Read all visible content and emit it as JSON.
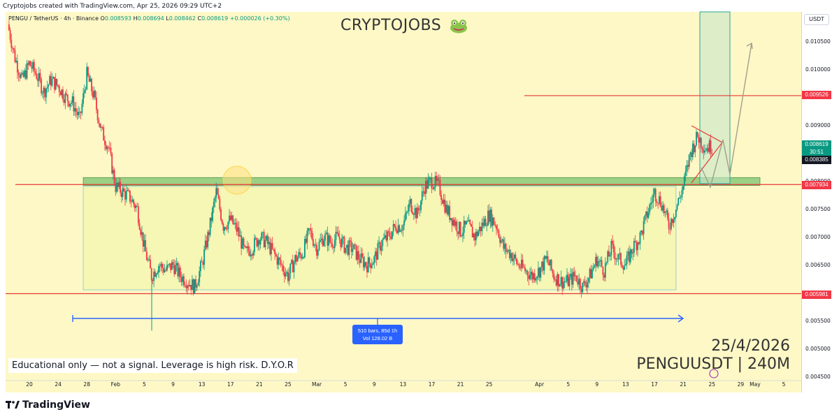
{
  "header": {
    "credit": "Cryptojobs created with TradingView.com, Apr 25, 2026 09:29 UTC+2"
  },
  "legend": {
    "symbol": "PENGU / TetherUS · 4h · Binance",
    "o_label": "O",
    "o": "0.008593",
    "h_label": "H",
    "h": "0.008694",
    "l_label": "L",
    "l": "0.008462",
    "c_label": "C",
    "c": "0.008619",
    "change": "+0.000026 (+0.30%)"
  },
  "brand": {
    "title": "CRYPTOJOBS",
    "emoji_icon": "frog-face-icon"
  },
  "currency": "USDT",
  "price_tags": {
    "current_price": "0.008619",
    "countdown": "30:51",
    "tag_008385": "0.008385",
    "tag_007934": "0.007934",
    "tag_009526": "0.009526",
    "tag_005981": "0.005981"
  },
  "range_measure": {
    "line1": "510 bars, 85d 1h",
    "line2": "Vol 128.02 B"
  },
  "disclaimer": "Educational only — not a signal. Leverage is high risk. D.Y.O.R",
  "stamp": {
    "date": "25/4/2026",
    "pair": "PENGUUSDT | 240M"
  },
  "footer": {
    "logo_text": "TradingView"
  },
  "colors": {
    "up": "#089981",
    "down": "#f23645",
    "background": "#fdf8c6",
    "zone": "#4caf50",
    "line": "#e53935",
    "measure": "#2962ff"
  },
  "chart_data": {
    "type": "candlestick",
    "title": "PENGU / TetherUS · 4h · Binance",
    "xlabel": "",
    "ylabel": "",
    "ylim": [
      0.00445,
      0.01095
    ],
    "y_ticks": [
      "0.010500",
      "0.010000",
      "0.009000",
      "0.008500",
      "0.008000",
      "0.007500",
      "0.007000",
      "0.006500",
      "0.006000",
      "0.005500",
      "0.005000",
      "0.004500"
    ],
    "x_ticks": [
      {
        "label": "20",
        "date": "2026-01-20"
      },
      {
        "label": "24",
        "date": "2026-01-24"
      },
      {
        "label": "28",
        "date": "2026-01-28"
      },
      {
        "label": "Feb",
        "date": "2026-02-01"
      },
      {
        "label": "5",
        "date": "2026-02-05"
      },
      {
        "label": "9",
        "date": "2026-02-09"
      },
      {
        "label": "13",
        "date": "2026-02-13"
      },
      {
        "label": "17",
        "date": "2026-02-17"
      },
      {
        "label": "21",
        "date": "2026-02-21"
      },
      {
        "label": "25",
        "date": "2026-02-25"
      },
      {
        "label": "Mar",
        "date": "2026-03-01"
      },
      {
        "label": "5",
        "date": "2026-03-05"
      },
      {
        "label": "9",
        "date": "2026-03-09"
      },
      {
        "label": "13",
        "date": "2026-03-13"
      },
      {
        "label": "17",
        "date": "2026-03-17"
      },
      {
        "label": "21",
        "date": "2026-03-21"
      },
      {
        "label": "25",
        "date": "2026-03-25"
      },
      {
        "label": "Apr",
        "date": "2026-04-01"
      },
      {
        "label": "5",
        "date": "2026-04-05"
      },
      {
        "label": "9",
        "date": "2026-04-09"
      },
      {
        "label": "13",
        "date": "2026-04-13"
      },
      {
        "label": "17",
        "date": "2026-04-17"
      },
      {
        "label": "21",
        "date": "2026-04-21"
      },
      {
        "label": "25",
        "date": "2026-04-25"
      },
      {
        "label": "29",
        "date": "2026-04-29"
      },
      {
        "label": "May",
        "date": "2026-05-01"
      },
      {
        "label": "5",
        "date": "2026-05-05"
      }
    ],
    "series": [
      {
        "path_points": [
          [
            "2026-01-17",
            0.0108
          ],
          [
            "2026-01-18",
            0.0102
          ],
          [
            "2026-01-19",
            0.0098
          ],
          [
            "2026-01-20",
            0.0101
          ],
          [
            "2026-01-21",
            0.0099
          ],
          [
            "2026-01-22",
            0.0096
          ],
          [
            "2026-01-23",
            0.0098
          ],
          [
            "2026-01-24",
            0.0097
          ],
          [
            "2026-01-25",
            0.0095
          ],
          [
            "2026-01-26",
            0.0094
          ],
          [
            "2026-01-27",
            0.0091
          ],
          [
            "2026-01-28",
            0.0099
          ],
          [
            "2026-01-29",
            0.0095
          ],
          [
            "2026-01-30",
            0.0089
          ],
          [
            "2026-01-31",
            0.0086
          ],
          [
            "2026-02-01",
            0.0079
          ],
          [
            "2026-02-02",
            0.0078
          ],
          [
            "2026-02-03",
            0.0077
          ],
          [
            "2026-02-04",
            0.0075
          ],
          [
            "2026-02-05",
            0.0068
          ],
          [
            "2026-02-06",
            0.0063
          ],
          [
            "2026-02-07",
            0.0065
          ],
          [
            "2026-02-08",
            0.0064
          ],
          [
            "2026-02-09",
            0.0065
          ],
          [
            "2026-02-10",
            0.0063
          ],
          [
            "2026-02-11",
            0.0062
          ],
          [
            "2026-02-12",
            0.0061
          ],
          [
            "2026-02-13",
            0.0065
          ],
          [
            "2026-02-14",
            0.0071
          ],
          [
            "2026-02-15",
            0.0078
          ],
          [
            "2026-02-16",
            0.0072
          ],
          [
            "2026-02-17",
            0.0073
          ],
          [
            "2026-02-18",
            0.0071
          ],
          [
            "2026-02-19",
            0.0067
          ],
          [
            "2026-02-20",
            0.0068
          ],
          [
            "2026-02-21",
            0.007
          ],
          [
            "2026-02-22",
            0.0069
          ],
          [
            "2026-02-23",
            0.0067
          ],
          [
            "2026-02-24",
            0.0065
          ],
          [
            "2026-02-25",
            0.0063
          ],
          [
            "2026-02-26",
            0.0066
          ],
          [
            "2026-02-27",
            0.0067
          ],
          [
            "2026-02-28",
            0.0071
          ],
          [
            "2026-03-01",
            0.0068
          ],
          [
            "2026-03-02",
            0.007
          ],
          [
            "2026-03-03",
            0.0069
          ],
          [
            "2026-03-04",
            0.007
          ],
          [
            "2026-03-05",
            0.0068
          ],
          [
            "2026-03-06",
            0.0068
          ],
          [
            "2026-03-07",
            0.0066
          ],
          [
            "2026-03-08",
            0.0065
          ],
          [
            "2026-03-09",
            0.0066
          ],
          [
            "2026-03-10",
            0.0069
          ],
          [
            "2026-03-11",
            0.007
          ],
          [
            "2026-03-12",
            0.0072
          ],
          [
            "2026-03-13",
            0.0072
          ],
          [
            "2026-03-14",
            0.0076
          ],
          [
            "2026-03-15",
            0.0074
          ],
          [
            "2026-03-16",
            0.0079
          ],
          [
            "2026-03-17",
            0.008
          ],
          [
            "2026-03-18",
            0.0079
          ],
          [
            "2026-03-19",
            0.0075
          ],
          [
            "2026-03-20",
            0.0073
          ],
          [
            "2026-03-21",
            0.0071
          ],
          [
            "2026-03-22",
            0.0072
          ],
          [
            "2026-03-23",
            0.007
          ],
          [
            "2026-03-24",
            0.0072
          ],
          [
            "2026-03-25",
            0.0074
          ],
          [
            "2026-03-26",
            0.0072
          ],
          [
            "2026-03-27",
            0.0068
          ],
          [
            "2026-03-28",
            0.0067
          ],
          [
            "2026-03-29",
            0.0065
          ],
          [
            "2026-03-30",
            0.0064
          ],
          [
            "2026-03-31",
            0.0063
          ],
          [
            "2026-04-01",
            0.0064
          ],
          [
            "2026-04-02",
            0.0066
          ],
          [
            "2026-04-03",
            0.0063
          ],
          [
            "2026-04-04",
            0.0062
          ],
          [
            "2026-04-05",
            0.0062
          ],
          [
            "2026-04-06",
            0.0063
          ],
          [
            "2026-04-07",
            0.0061
          ],
          [
            "2026-04-08",
            0.0063
          ],
          [
            "2026-04-09",
            0.0066
          ],
          [
            "2026-04-10",
            0.0064
          ],
          [
            "2026-04-11",
            0.0068
          ],
          [
            "2026-04-12",
            0.0066
          ],
          [
            "2026-04-13",
            0.0065
          ],
          [
            "2026-04-14",
            0.0068
          ],
          [
            "2026-04-15",
            0.007
          ],
          [
            "2026-04-16",
            0.0074
          ],
          [
            "2026-04-17",
            0.0078
          ],
          [
            "2026-04-18",
            0.0076
          ],
          [
            "2026-04-19",
            0.0072
          ],
          [
            "2026-04-20",
            0.0075
          ],
          [
            "2026-04-21",
            0.0079
          ],
          [
            "2026-04-22",
            0.0085
          ],
          [
            "2026-04-23",
            0.0088
          ],
          [
            "2026-04-24",
            0.0086
          ],
          [
            "2026-04-25",
            0.00862
          ]
        ]
      }
    ],
    "levels": [
      0.009526,
      0.007934,
      0.005981
    ],
    "range_box": {
      "x_from": "2026-01-31",
      "x_to": "2026-04-20",
      "y_from": 0.00605,
      "y_to": 0.0079
    },
    "zone": {
      "x_from": "2026-01-31",
      "x_to": "2026-04-30",
      "y_from": 0.00793,
      "y_to": 0.00806
    }
  }
}
